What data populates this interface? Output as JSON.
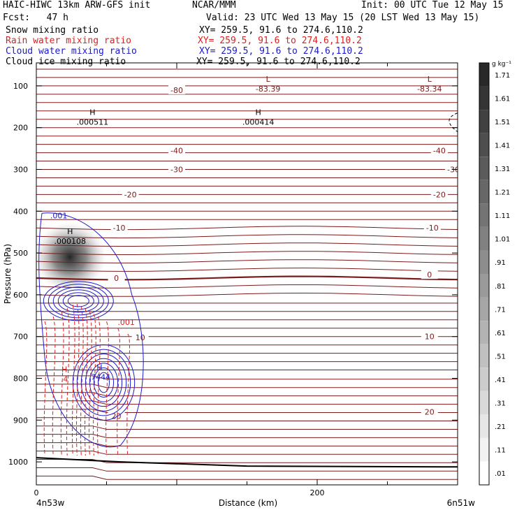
{
  "header": {
    "title": "HAIC-HIWC 13km ARW-GFS init",
    "center": "NCAR/MMM",
    "init": "Init: 00 UTC Tue 12 May 15",
    "fcst": "Fcst:   47 h",
    "valid": "Valid: 23 UTC Wed 13 May 15 (20 LST Wed 13 May 15)",
    "fields": [
      {
        "name": "Snow mixing ratio",
        "xy": "XY= 259.5, 91.6 to 274.6,110.2",
        "color": "#000000"
      },
      {
        "name": "Rain water mixing ratio",
        "xy": "XY= 259.5, 91.6 to 274.6,110.2",
        "color": "#dd2020"
      },
      {
        "name": "Cloud water mixing ratio",
        "xy": "XY= 259.5, 91.6 to 274.6,110.2",
        "color": "#1a1acc"
      },
      {
        "name": "Cloud ice mixing ratio",
        "xy": "XY= 259.5, 91.6 to 274.6,110.2",
        "color": "#000000"
      }
    ]
  },
  "colors": {
    "temperature": "#7a1a1a",
    "rain": "#dd2020",
    "cloud_water": "#1a1acc",
    "ground": "#000000"
  },
  "chart_data": {
    "type": "contour-cross-section",
    "xlabel": "Distance (km)",
    "ylabel": "Pressure (hPa)",
    "x_ticks": [
      0,
      200
    ],
    "x_range": [
      0,
      300
    ],
    "y_ticks": [
      100,
      200,
      300,
      400,
      500,
      600,
      700,
      800,
      900,
      1000
    ],
    "y_range": [
      45,
      1055
    ],
    "x_start_label": "4n53w",
    "x_end_label": "6n51w",
    "colorbar": {
      "unit": "g kg⁻¹",
      "ticks": [
        "1.71",
        "1.61",
        "1.51",
        "1.41",
        "1.31",
        "1.21",
        "1.11",
        "1.01",
        ".91",
        ".81",
        ".71",
        ".61",
        ".51",
        ".41",
        ".31",
        ".21",
        ".11",
        ".01"
      ]
    },
    "annotations": [
      {
        "mark": "L",
        "value": "-83.39",
        "x": 165,
        "p": 100,
        "color": "#7a1a1a"
      },
      {
        "mark": "L",
        "value": "-83.34",
        "x": 280,
        "p": 100,
        "color": "#7a1a1a"
      },
      {
        "mark": "H",
        "value": ".000511",
        "x": 40,
        "p": 180,
        "color": "#000000"
      },
      {
        "mark": "H",
        "value": ".000414",
        "x": 158,
        "p": 180,
        "color": "#000000"
      },
      {
        "mark": "H",
        "value": ".000108",
        "x": 24,
        "p": 465,
        "color": "#000000"
      },
      {
        "mark": "H",
        "value": ".4",
        "x": 20,
        "p": 795,
        "color": "#dd2020"
      },
      {
        "mark": "H",
        "value": ".7444",
        "x": 45,
        "p": 790,
        "color": "#1a1acc"
      }
    ],
    "isotherm_labels": [
      {
        "text": "-80",
        "x": 100,
        "p": 110
      },
      {
        "text": "-40",
        "x": 100,
        "p": 255
      },
      {
        "text": "-40",
        "x": 287,
        "p": 255
      },
      {
        "text": "-30",
        "x": 100,
        "p": 300
      },
      {
        "text": "-30",
        "x": 297,
        "p": 300
      },
      {
        "text": "-20",
        "x": 67,
        "p": 360
      },
      {
        "text": "-20",
        "x": 287,
        "p": 360
      },
      {
        "text": "-10",
        "x": 59,
        "p": 440
      },
      {
        "text": "-10",
        "x": 282,
        "p": 440
      },
      {
        "text": "0",
        "x": 57,
        "p": 560
      },
      {
        "text": "0",
        "x": 280,
        "p": 552
      },
      {
        "text": "10",
        "x": 74,
        "p": 702
      },
      {
        "text": "10",
        "x": 280,
        "p": 700
      },
      {
        "text": "20",
        "x": 57,
        "p": 890
      },
      {
        "text": "20",
        "x": 280,
        "p": 880
      }
    ],
    "contour_labels": [
      {
        "text": ".001",
        "x": 16,
        "p": 410,
        "color": "#1a1acc"
      },
      {
        "text": ".001",
        "x": 64,
        "p": 665,
        "color": "#dd2020"
      }
    ]
  }
}
